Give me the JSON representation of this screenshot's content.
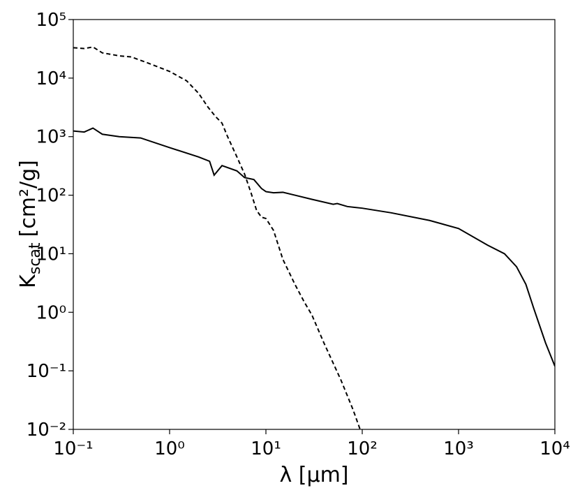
{
  "chart_data": {
    "type": "line",
    "xlabel": "λ [μm]",
    "ylabel": {
      "symbol": "K",
      "subscript": "scat",
      "unit": "[cm²/g]"
    },
    "xscale": "log",
    "yscale": "log",
    "xlim": [
      0.1,
      10000
    ],
    "ylim": [
      0.01,
      100000
    ],
    "xticks": [
      {
        "value": 0.1,
        "label": "10⁻¹"
      },
      {
        "value": 1,
        "label": "10⁰"
      },
      {
        "value": 10,
        "label": "10¹"
      },
      {
        "value": 100,
        "label": "10²"
      },
      {
        "value": 1000,
        "label": "10³"
      },
      {
        "value": 10000,
        "label": "10⁴"
      }
    ],
    "yticks": [
      {
        "value": 0.01,
        "label": "10⁻²"
      },
      {
        "value": 0.1,
        "label": "10⁻¹"
      },
      {
        "value": 1,
        "label": "10⁰"
      },
      {
        "value": 10,
        "label": "10¹"
      },
      {
        "value": 100,
        "label": "10²"
      },
      {
        "value": 1000,
        "label": "10³"
      },
      {
        "value": 10000,
        "label": "10⁴"
      },
      {
        "value": 100000,
        "label": "10⁵"
      }
    ],
    "series": [
      {
        "color": "#000000",
        "dash": "solid",
        "x": [
          0.1,
          0.13,
          0.16,
          0.2,
          0.3,
          0.5,
          1,
          2,
          2.6,
          2.9,
          3.5,
          5,
          6,
          7.5,
          9,
          10,
          12,
          15,
          20,
          30,
          50,
          55,
          70,
          100,
          200,
          500,
          1000,
          2000,
          3000,
          4000,
          5000,
          6000,
          8000,
          10000
        ],
        "values": [
          1250,
          1200,
          1400,
          1100,
          1000,
          950,
          650,
          450,
          380,
          220,
          320,
          260,
          200,
          185,
          130,
          115,
          110,
          112,
          100,
          85,
          70,
          72,
          64,
          60,
          50,
          37,
          27,
          14,
          10,
          6,
          3,
          1.2,
          0.3,
          0.12
        ]
      },
      {
        "color": "#000000",
        "dash": "dashed",
        "x": [
          0.1,
          0.13,
          0.16,
          0.2,
          0.3,
          0.4,
          0.6,
          1,
          1.5,
          2,
          2.5,
          3,
          3.5,
          4,
          5,
          6,
          7,
          8,
          9,
          10,
          12,
          15,
          20,
          25,
          30,
          40,
          60,
          80,
          95
        ],
        "values": [
          33000,
          32000,
          34000,
          27000,
          24000,
          23000,
          18000,
          13000,
          9000,
          5500,
          3200,
          2200,
          1700,
          1000,
          450,
          230,
          110,
          55,
          42,
          40,
          25,
          8,
          3,
          1.5,
          0.9,
          0.3,
          0.07,
          0.022,
          0.01
        ]
      }
    ]
  }
}
